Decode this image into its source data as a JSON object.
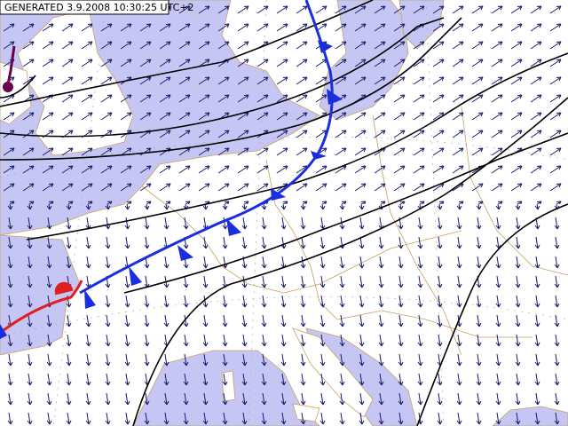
{
  "header": {
    "title": "GENERATED 3.9.2008 10:30:25 UTC+2"
  }
}
